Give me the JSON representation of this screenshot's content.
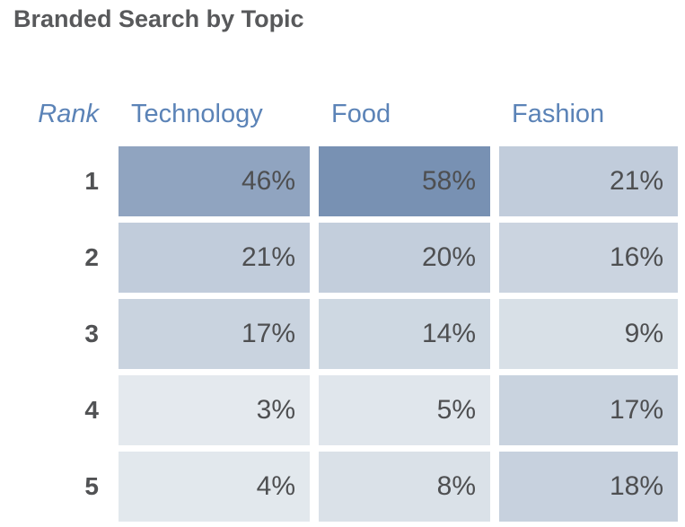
{
  "title": "Branded Search by Topic",
  "colors": {
    "background": "#ffffff",
    "title_text": "#58595b",
    "header_text": "#5b83b7",
    "rank_text": "#515254",
    "cell_text": "#4e4f51",
    "scale_min": "#eaeef1",
    "scale_max": "#7891b3"
  },
  "chart_data": {
    "type": "heatmap",
    "title": "Branded Search by Topic",
    "rank_label": "Rank",
    "columns": [
      "Technology",
      "Food",
      "Fashion"
    ],
    "ranks": [
      "1",
      "2",
      "3",
      "4",
      "5"
    ],
    "unit": "%",
    "value_domain": [
      0,
      58
    ],
    "series": [
      {
        "name": "Technology",
        "values": [
          46,
          21,
          17,
          3,
          4
        ]
      },
      {
        "name": "Food",
        "values": [
          58,
          20,
          14,
          5,
          8
        ]
      },
      {
        "name": "Fashion",
        "values": [
          21,
          16,
          9,
          17,
          18
        ]
      }
    ],
    "cell_labels": [
      [
        "46%",
        "58%",
        "21%"
      ],
      [
        "21%",
        "20%",
        "16%"
      ],
      [
        "17%",
        "14%",
        "9%"
      ],
      [
        "3%",
        "5%",
        "17%"
      ],
      [
        "4%",
        "8%",
        "18%"
      ]
    ]
  }
}
